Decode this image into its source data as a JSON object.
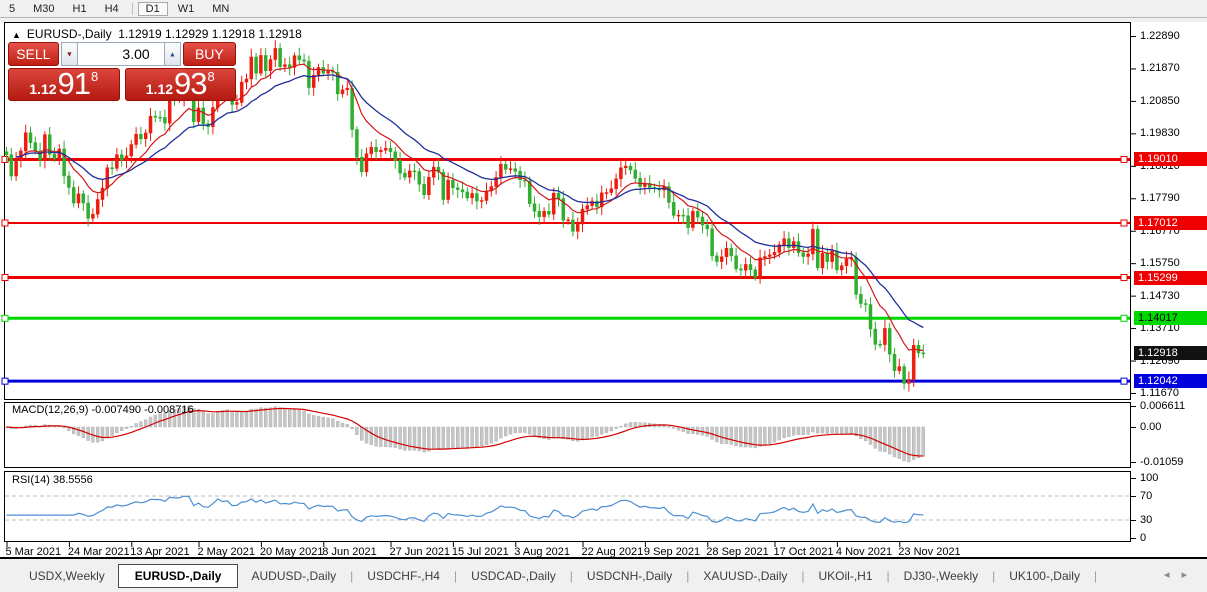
{
  "toolbar": {
    "timeframes": [
      "5",
      "M30",
      "H1",
      "H4",
      "D1",
      "W1",
      "MN"
    ],
    "active": "D1",
    "separator_before": "D1"
  },
  "chart": {
    "title": {
      "marker": "▲",
      "symbol": "EURUSD-,Daily",
      "ohlc": "1.12919 1.12929 1.12918 1.12918"
    },
    "trade": {
      "sell_label": "SELL",
      "buy_label": "BUY",
      "volume": "3.00",
      "spinner_down_icon": "▼",
      "spinner_up_icon": "▲",
      "sell_price": {
        "prefix": "1.12",
        "main": "91",
        "sup": "8"
      },
      "buy_price": {
        "prefix": "1.12",
        "main": "93",
        "sup": "8"
      }
    },
    "price_axis": {
      "ticks": [
        "1.22890",
        "1.21870",
        "1.20850",
        "1.19830",
        "1.18810",
        "1.17790",
        "1.16770",
        "1.15750",
        "1.14730",
        "1.13710",
        "1.12690",
        "1.11670"
      ],
      "tags": [
        {
          "text": "1.19010",
          "price": 1.1901,
          "bg": "#ee0000",
          "fg": "#ffffff"
        },
        {
          "text": "1.17012",
          "price": 1.17012,
          "bg": "#ee0000",
          "fg": "#ffffff"
        },
        {
          "text": "1.15299",
          "price": 1.15299,
          "bg": "#ee0000",
          "fg": "#ffffff"
        },
        {
          "text": "1.14017",
          "price": 1.14017,
          "bg": "#00d900",
          "fg": "#000000"
        },
        {
          "text": "1.12918",
          "price": 1.12918,
          "bg": "#111111",
          "fg": "#ffffff"
        },
        {
          "text": "1.12042",
          "price": 1.12042,
          "bg": "#0000dd",
          "fg": "#ffffff"
        }
      ]
    },
    "levels": [
      {
        "price": 1.1901,
        "color": "#ee0000",
        "width": 3
      },
      {
        "price": 1.17012,
        "color": "#ee0000",
        "width": 2
      },
      {
        "price": 1.15299,
        "color": "#ee0000",
        "width": 3
      },
      {
        "price": 1.14017,
        "color": "#00d900",
        "width": 3
      },
      {
        "price": 1.12042,
        "color": "#0000dd",
        "width": 3
      }
    ],
    "date_axis": [
      {
        "label": "5 Mar 2021",
        "bar": 0
      },
      {
        "label": "24 Mar 2021",
        "bar": 13
      },
      {
        "label": "13 Apr 2021",
        "bar": 26
      },
      {
        "label": "2 May 2021",
        "bar": 40
      },
      {
        "label": "20 May 2021",
        "bar": 53
      },
      {
        "label": "8 Jun 2021",
        "bar": 66
      },
      {
        "label": "27 Jun 2021",
        "bar": 80
      },
      {
        "label": "15 Jul 2021",
        "bar": 93
      },
      {
        "label": "3 Aug 2021",
        "bar": 106
      },
      {
        "label": "22 Aug 2021",
        "bar": 120
      },
      {
        "label": "9 Sep 2021",
        "bar": 133
      },
      {
        "label": "28 Sep 2021",
        "bar": 146
      },
      {
        "label": "17 Oct 2021",
        "bar": 160
      },
      {
        "label": "4 Nov 2021",
        "bar": 173
      },
      {
        "label": "23 Nov 2021",
        "bar": 186
      }
    ],
    "colors": {
      "up_candle": "#ee1c0e",
      "down_candle": "#2fae2f",
      "ma_fast": "#d01818",
      "ma_slow": "#20309a",
      "macd_hist": "#c6c6c6",
      "macd_signal": "#d40000",
      "rsi_line": "#4b8fd5"
    }
  },
  "macd": {
    "label": "MACD(12,26,9) -0.007490 -0.008716",
    "ticks": [
      {
        "label": "0.006611",
        "at": "max"
      },
      {
        "label": "0.00",
        "at": "zero"
      },
      {
        "label": "-0.01059",
        "at": "min"
      }
    ],
    "params": {
      "fast": 12,
      "slow": 26,
      "signal": 9
    }
  },
  "rsi": {
    "label": "RSI(14) 38.5556",
    "ticks": [
      {
        "label": "100",
        "v": 100
      },
      {
        "label": "70",
        "v": 70
      },
      {
        "label": "30",
        "v": 30
      },
      {
        "label": "0",
        "v": 0
      }
    ],
    "dashed_levels": [
      70,
      30
    ],
    "period": 14
  },
  "tabs": {
    "items": [
      "USDX,Weekly",
      "EURUSD-,Daily",
      "AUDUSD-,Daily",
      "USDCHF-,H4",
      "USDCAD-,Daily",
      "USDCNH-,Daily",
      "XAUUSD-,Daily",
      "UKOil-,H1",
      "DJ30-,Weekly",
      "UK100-,Daily"
    ],
    "active_index": 1,
    "scroll_left_icon": "◂",
    "scroll_right_icon": "▸"
  },
  "chart_data": {
    "type": "candlestick",
    "symbol": "EURUSD-,Daily",
    "first_open": 1.1925,
    "closes": [
      1.1916,
      1.1849,
      1.19,
      1.1928,
      1.1985,
      1.1954,
      1.1928,
      1.1899,
      1.1979,
      1.1917,
      1.1903,
      1.1934,
      1.1849,
      1.1813,
      1.1764,
      1.1793,
      1.1764,
      1.1716,
      1.1729,
      1.1775,
      1.1811,
      1.1875,
      1.1873,
      1.1916,
      1.1899,
      1.1912,
      1.1948,
      1.198,
      1.1966,
      1.1984,
      1.2037,
      1.2034,
      1.2033,
      1.2015,
      1.2096,
      1.2089,
      1.2089,
      1.2125,
      1.2122,
      1.202,
      1.2063,
      1.2013,
      1.2004,
      1.2064,
      1.2165,
      1.2129,
      1.2147,
      1.2074,
      1.208,
      1.2144,
      1.2154,
      1.2223,
      1.2172,
      1.2228,
      1.218,
      1.2215,
      1.225,
      1.2193,
      1.2199,
      1.219,
      1.2227,
      1.2214,
      1.221,
      1.2127,
      1.2166,
      1.219,
      1.2172,
      1.2179,
      1.2175,
      1.2107,
      1.212,
      1.2125,
      1.1995,
      1.1908,
      1.1862,
      1.1919,
      1.1939,
      1.1925,
      1.193,
      1.1936,
      1.1925,
      1.1898,
      1.1858,
      1.1845,
      1.1865,
      1.1863,
      1.1823,
      1.179,
      1.1845,
      1.1877,
      1.1861,
      1.1775,
      1.1836,
      1.1812,
      1.1806,
      1.1799,
      1.178,
      1.1794,
      1.177,
      1.1772,
      1.1802,
      1.1816,
      1.1845,
      1.1886,
      1.187,
      1.1872,
      1.1864,
      1.1837,
      1.1833,
      1.1762,
      1.1738,
      1.1721,
      1.1738,
      1.1729,
      1.1795,
      1.1778,
      1.171,
      1.1711,
      1.1675,
      1.1698,
      1.1745,
      1.1756,
      1.177,
      1.1752,
      1.1796,
      1.1797,
      1.1809,
      1.184,
      1.1875,
      1.188,
      1.1868,
      1.1842,
      1.1816,
      1.1826,
      1.1813,
      1.181,
      1.1805,
      1.1816,
      1.1766,
      1.1725,
      1.1726,
      1.1724,
      1.1687,
      1.1738,
      1.172,
      1.1695,
      1.1683,
      1.1598,
      1.158,
      1.1595,
      1.1622,
      1.1598,
      1.1557,
      1.1553,
      1.1571,
      1.1554,
      1.153,
      1.1592,
      1.1596,
      1.1601,
      1.1609,
      1.1633,
      1.1652,
      1.1624,
      1.1643,
      1.1608,
      1.1596,
      1.1604,
      1.1682,
      1.156,
      1.1606,
      1.158,
      1.1614,
      1.1554,
      1.1567,
      1.1588,
      1.1593,
      1.1477,
      1.1448,
      1.1445,
      1.1368,
      1.132,
      1.1319,
      1.137,
      1.1289,
      1.1237,
      1.125,
      1.1197,
      1.121,
      1.1317,
      1.1293,
      1.1292
    ],
    "y_axis_top_tick": 1.2289,
    "y_axis_step": 0.0102,
    "moving_average_periods": {
      "fast": 10,
      "slow": 21
    }
  }
}
